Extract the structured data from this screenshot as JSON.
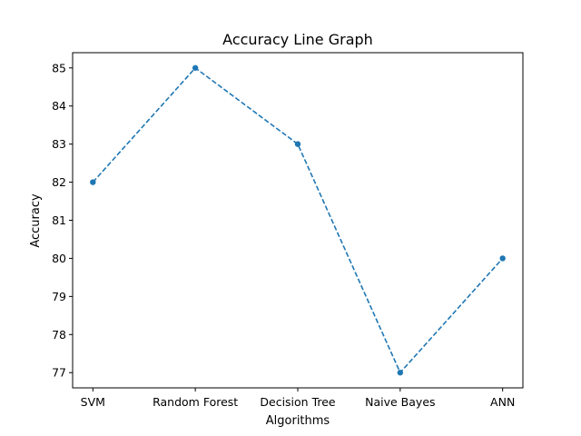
{
  "chart_data": {
    "type": "line",
    "title": "Accuracy Line Graph",
    "xlabel": "Algorithms",
    "ylabel": "Accuracy",
    "categories": [
      "SVM",
      "Random Forest",
      "Decision Tree",
      "Naive Bayes",
      "ANN"
    ],
    "series": [
      {
        "values": [
          82,
          85,
          83,
          77,
          80
        ]
      }
    ],
    "yticks": [
      "77",
      "78",
      "79",
      "80",
      "81",
      "82",
      "83",
      "84",
      "85"
    ],
    "ylim": [
      76.6,
      85.4
    ],
    "line_style": "dashed",
    "marker": "circle",
    "color": "#1f77b4",
    "grid": false,
    "legend": "none"
  }
}
